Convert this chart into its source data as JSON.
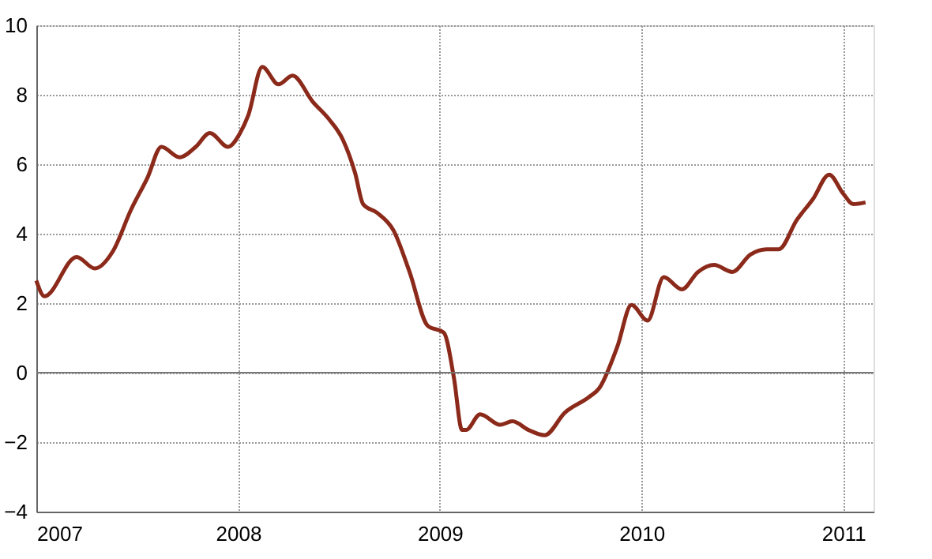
{
  "chart_data": {
    "type": "line",
    "xlim": [
      2007,
      2011.15
    ],
    "xticks": [
      2007,
      2008,
      2009,
      2010,
      2011
    ],
    "ylim": [
      -4,
      10
    ],
    "yticks": [
      -4,
      -2,
      0,
      2,
      4,
      6,
      8,
      10
    ],
    "grid": true,
    "line_style": "solid",
    "marker": "none",
    "series": [
      {
        "color": "#8b2a1a",
        "x": [
          2007.0,
          2007.04,
          2007.2,
          2007.29,
          2007.38,
          2007.47,
          2007.55,
          2007.62,
          2007.71,
          2007.79,
          2007.86,
          2007.95,
          2008.01,
          2008.05,
          2008.12,
          2008.2,
          2008.27,
          2008.37,
          2008.45,
          2008.52,
          2008.58,
          2008.62,
          2008.69,
          2008.77,
          2008.85,
          2008.94,
          2009.02,
          2009.07,
          2009.11,
          2009.13,
          2009.2,
          2009.3,
          2009.36,
          2009.44,
          2009.52,
          2009.62,
          2009.74,
          2009.79,
          2009.88,
          2009.95,
          2010.03,
          2010.11,
          2010.2,
          2010.28,
          2010.36,
          2010.45,
          2010.54,
          2010.62,
          2010.68,
          2010.77,
          2010.85,
          2010.93,
          2011.0,
          2011.05,
          2011.11
        ],
        "values": [
          2.65,
          2.2,
          3.33,
          3.0,
          3.5,
          4.7,
          5.6,
          6.5,
          6.2,
          6.5,
          6.9,
          6.5,
          6.9,
          7.4,
          8.8,
          8.3,
          8.55,
          7.8,
          7.3,
          6.7,
          5.75,
          4.85,
          4.6,
          4.1,
          2.9,
          1.35,
          1.15,
          -0.15,
          -1.65,
          -1.65,
          -1.2,
          -1.5,
          -1.4,
          -1.65,
          -1.8,
          -1.15,
          -0.7,
          -0.45,
          0.75,
          1.95,
          1.5,
          2.75,
          2.4,
          2.9,
          3.1,
          2.9,
          3.4,
          3.55,
          3.55,
          4.4,
          5.0,
          5.7,
          5.15,
          4.85,
          4.9
        ]
      }
    ]
  }
}
